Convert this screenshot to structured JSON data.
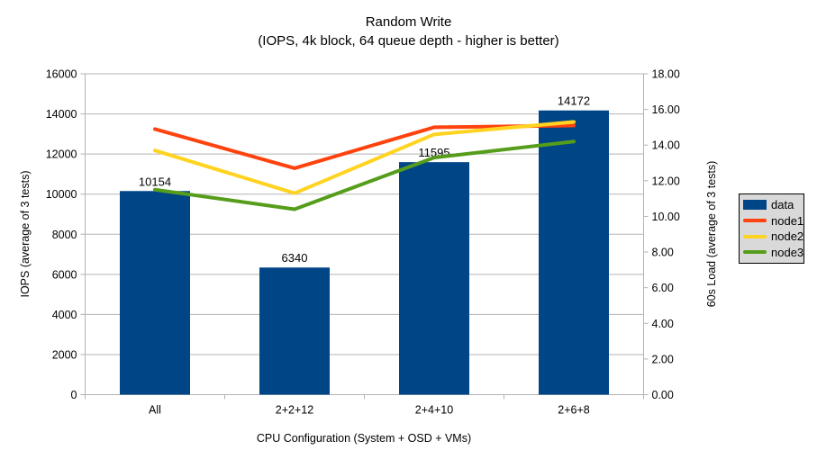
{
  "title": "Random Write",
  "subtitle": "(IOPS, 4k block, 64 queue depth - higher is better)",
  "chart_data": {
    "type": "bar",
    "subtype": "bar-and-line-dual-axis",
    "categories": [
      "All",
      "2+2+12",
      "2+4+10",
      "2+6+8"
    ],
    "bar_series": {
      "name": "data",
      "axis": "left",
      "color": "#004586",
      "values": [
        10154,
        6340,
        11595,
        14172
      ],
      "value_labels": [
        "10154",
        "6340",
        "11595",
        "14172"
      ]
    },
    "line_series": [
      {
        "name": "node1",
        "axis": "right",
        "color": "#FF420E",
        "values": [
          14.9,
          12.7,
          15.0,
          15.1
        ]
      },
      {
        "name": "node2",
        "axis": "right",
        "color": "#FFD320",
        "values": [
          13.7,
          11.3,
          14.6,
          15.3
        ]
      },
      {
        "name": "node3",
        "axis": "right",
        "color": "#579D1C",
        "values": [
          11.5,
          10.4,
          13.3,
          14.2
        ]
      }
    ],
    "xlabel": "CPU Configuration (System + OSD + VMs)",
    "ylabel_left": "IOPS (average of 3 tests)",
    "ylabel_right": "60s Load (average of 3 tests)",
    "ylim_left": [
      0,
      16000
    ],
    "ytick_step_left": 2000,
    "ylim_right": [
      0,
      18
    ],
    "ytick_step_right": 2,
    "grid": true,
    "legend_position": "right",
    "legend": [
      {
        "label": "data",
        "color": "#004586",
        "marker": "box"
      },
      {
        "label": "node1",
        "color": "#FF420E",
        "marker": "line"
      },
      {
        "label": "node2",
        "color": "#FFD320",
        "marker": "line"
      },
      {
        "label": "node3",
        "color": "#579D1C",
        "marker": "line"
      }
    ],
    "colors": {
      "grid": "#b3b3b3",
      "frame": "#b3b3b3",
      "text": "#000000",
      "legend_bg": "#d9d9d9",
      "background": "#ffffff"
    }
  }
}
